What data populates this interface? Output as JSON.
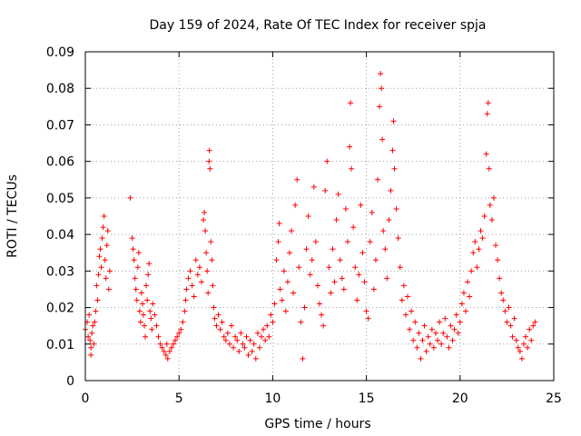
{
  "chart_data": {
    "type": "scatter",
    "title": "Day 159 of 2024, Rate Of TEC Index for receiver spja",
    "xlabel": "GPS time / hours",
    "ylabel": "ROTI / TECUs",
    "xlim": [
      0,
      25
    ],
    "ylim": [
      0,
      0.09
    ],
    "xticks": [
      0,
      5,
      10,
      15,
      20,
      25
    ],
    "xtick_labels": [
      "0",
      "5",
      "10",
      "15",
      "20",
      "25"
    ],
    "yticks": [
      0,
      0.01,
      0.02,
      0.03,
      0.04,
      0.05,
      0.06,
      0.07,
      0.08,
      0.09
    ],
    "ytick_labels": [
      "0",
      "0.01",
      "0.02",
      "0.03",
      "0.04",
      "0.05",
      "0.06",
      "0.07",
      "0.08",
      "0.09"
    ],
    "grid": true,
    "marker": "+",
    "color": "#ff0000",
    "series": [
      {
        "name": "ROTI",
        "points": [
          [
            0.0,
            0.014
          ],
          [
            0.1,
            0.016
          ],
          [
            0.15,
            0.012
          ],
          [
            0.2,
            0.018
          ],
          [
            0.25,
            0.011
          ],
          [
            0.3,
            0.009
          ],
          [
            0.3,
            0.007
          ],
          [
            0.35,
            0.013
          ],
          [
            0.4,
            0.015
          ],
          [
            0.45,
            0.01
          ],
          [
            0.5,
            0.016
          ],
          [
            0.55,
            0.019
          ],
          [
            0.6,
            0.026
          ],
          [
            0.65,
            0.022
          ],
          [
            0.7,
            0.029
          ],
          [
            0.75,
            0.034
          ],
          [
            0.8,
            0.036
          ],
          [
            0.85,
            0.031
          ],
          [
            0.9,
            0.039
          ],
          [
            0.95,
            0.042
          ],
          [
            1.0,
            0.045
          ],
          [
            1.05,
            0.033
          ],
          [
            1.1,
            0.028
          ],
          [
            1.15,
            0.037
          ],
          [
            1.2,
            0.041
          ],
          [
            1.25,
            0.025
          ],
          [
            1.3,
            0.03
          ],
          [
            2.4,
            0.05
          ],
          [
            2.5,
            0.039
          ],
          [
            2.55,
            0.036
          ],
          [
            2.6,
            0.033
          ],
          [
            2.65,
            0.028
          ],
          [
            2.7,
            0.025
          ],
          [
            2.75,
            0.022
          ],
          [
            2.8,
            0.031
          ],
          [
            2.85,
            0.035
          ],
          [
            2.9,
            0.019
          ],
          [
            2.95,
            0.016
          ],
          [
            3.0,
            0.024
          ],
          [
            3.05,
            0.021
          ],
          [
            3.1,
            0.018
          ],
          [
            3.15,
            0.015
          ],
          [
            3.2,
            0.012
          ],
          [
            3.25,
            0.026
          ],
          [
            3.3,
            0.022
          ],
          [
            3.35,
            0.029
          ],
          [
            3.4,
            0.032
          ],
          [
            3.45,
            0.019
          ],
          [
            3.5,
            0.017
          ],
          [
            3.55,
            0.014
          ],
          [
            3.6,
            0.021
          ],
          [
            3.7,
            0.018
          ],
          [
            3.8,
            0.015
          ],
          [
            3.9,
            0.012
          ],
          [
            4.0,
            0.01
          ],
          [
            4.1,
            0.009
          ],
          [
            4.2,
            0.008
          ],
          [
            4.3,
            0.007
          ],
          [
            4.35,
            0.01
          ],
          [
            4.4,
            0.006
          ],
          [
            4.5,
            0.008
          ],
          [
            4.6,
            0.009
          ],
          [
            4.7,
            0.01
          ],
          [
            4.8,
            0.011
          ],
          [
            4.9,
            0.012
          ],
          [
            5.0,
            0.013
          ],
          [
            5.1,
            0.014
          ],
          [
            5.2,
            0.016
          ],
          [
            5.3,
            0.019
          ],
          [
            5.35,
            0.022
          ],
          [
            5.4,
            0.025
          ],
          [
            5.5,
            0.028
          ],
          [
            5.6,
            0.03
          ],
          [
            5.7,
            0.026
          ],
          [
            5.8,
            0.023
          ],
          [
            5.9,
            0.033
          ],
          [
            6.0,
            0.029
          ],
          [
            6.1,
            0.031
          ],
          [
            6.2,
            0.027
          ],
          [
            6.3,
            0.044
          ],
          [
            6.35,
            0.046
          ],
          [
            6.4,
            0.041
          ],
          [
            6.45,
            0.035
          ],
          [
            6.5,
            0.03
          ],
          [
            6.55,
            0.024
          ],
          [
            6.6,
            0.06
          ],
          [
            6.62,
            0.063
          ],
          [
            6.65,
            0.058
          ],
          [
            6.7,
            0.038
          ],
          [
            6.75,
            0.033
          ],
          [
            6.8,
            0.026
          ],
          [
            6.85,
            0.02
          ],
          [
            6.9,
            0.017
          ],
          [
            7.0,
            0.015
          ],
          [
            7.1,
            0.018
          ],
          [
            7.2,
            0.014
          ],
          [
            7.3,
            0.016
          ],
          [
            7.4,
            0.012
          ],
          [
            7.5,
            0.011
          ],
          [
            7.6,
            0.013
          ],
          [
            7.7,
            0.01
          ],
          [
            7.8,
            0.015
          ],
          [
            7.9,
            0.009
          ],
          [
            8.0,
            0.012
          ],
          [
            8.1,
            0.011
          ],
          [
            8.2,
            0.008
          ],
          [
            8.3,
            0.013
          ],
          [
            8.4,
            0.01
          ],
          [
            8.5,
            0.009
          ],
          [
            8.6,
            0.012
          ],
          [
            8.7,
            0.007
          ],
          [
            8.8,
            0.011
          ],
          [
            8.9,
            0.008
          ],
          [
            9.0,
            0.01
          ],
          [
            9.1,
            0.006
          ],
          [
            9.2,
            0.013
          ],
          [
            9.3,
            0.009
          ],
          [
            9.4,
            0.012
          ],
          [
            9.5,
            0.014
          ],
          [
            9.6,
            0.011
          ],
          [
            9.7,
            0.015
          ],
          [
            9.8,
            0.012
          ],
          [
            9.9,
            0.018
          ],
          [
            10.0,
            0.016
          ],
          [
            10.1,
            0.021
          ],
          [
            10.2,
            0.033
          ],
          [
            10.3,
            0.038
          ],
          [
            10.35,
            0.043
          ],
          [
            10.4,
            0.025
          ],
          [
            10.5,
            0.022
          ],
          [
            10.6,
            0.03
          ],
          [
            10.7,
            0.019
          ],
          [
            10.8,
            0.027
          ],
          [
            10.9,
            0.035
          ],
          [
            11.0,
            0.041
          ],
          [
            11.1,
            0.024
          ],
          [
            11.2,
            0.048
          ],
          [
            11.3,
            0.055
          ],
          [
            11.4,
            0.031
          ],
          [
            11.5,
            0.016
          ],
          [
            11.6,
            0.006
          ],
          [
            11.7,
            0.02
          ],
          [
            11.8,
            0.036
          ],
          [
            11.9,
            0.045
          ],
          [
            12.0,
            0.029
          ],
          [
            12.1,
            0.033
          ],
          [
            12.2,
            0.053
          ],
          [
            12.3,
            0.038
          ],
          [
            12.4,
            0.026
          ],
          [
            12.5,
            0.021
          ],
          [
            12.6,
            0.018
          ],
          [
            12.7,
            0.015
          ],
          [
            12.8,
            0.052
          ],
          [
            12.9,
            0.06
          ],
          [
            13.0,
            0.031
          ],
          [
            13.1,
            0.024
          ],
          [
            13.2,
            0.036
          ],
          [
            13.3,
            0.027
          ],
          [
            13.4,
            0.044
          ],
          [
            13.5,
            0.051
          ],
          [
            13.6,
            0.033
          ],
          [
            13.7,
            0.028
          ],
          [
            13.8,
            0.025
          ],
          [
            13.9,
            0.047
          ],
          [
            14.0,
            0.038
          ],
          [
            14.1,
            0.064
          ],
          [
            14.15,
            0.076
          ],
          [
            14.2,
            0.058
          ],
          [
            14.3,
            0.042
          ],
          [
            14.4,
            0.031
          ],
          [
            14.5,
            0.022
          ],
          [
            14.6,
            0.029
          ],
          [
            14.7,
            0.048
          ],
          [
            14.8,
            0.035
          ],
          [
            14.9,
            0.027
          ],
          [
            15.0,
            0.019
          ],
          [
            15.1,
            0.017
          ],
          [
            15.2,
            0.038
          ],
          [
            15.3,
            0.046
          ],
          [
            15.4,
            0.025
          ],
          [
            15.5,
            0.033
          ],
          [
            15.6,
            0.055
          ],
          [
            15.7,
            0.075
          ],
          [
            15.75,
            0.084
          ],
          [
            15.8,
            0.08
          ],
          [
            15.85,
            0.066
          ],
          [
            15.9,
            0.041
          ],
          [
            16.0,
            0.036
          ],
          [
            16.1,
            0.028
          ],
          [
            16.2,
            0.044
          ],
          [
            16.3,
            0.052
          ],
          [
            16.4,
            0.063
          ],
          [
            16.45,
            0.071
          ],
          [
            16.5,
            0.058
          ],
          [
            16.6,
            0.047
          ],
          [
            16.7,
            0.039
          ],
          [
            16.8,
            0.031
          ],
          [
            16.9,
            0.022
          ],
          [
            17.0,
            0.026
          ],
          [
            17.1,
            0.018
          ],
          [
            17.2,
            0.023
          ],
          [
            17.3,
            0.014
          ],
          [
            17.4,
            0.019
          ],
          [
            17.5,
            0.011
          ],
          [
            17.6,
            0.016
          ],
          [
            17.7,
            0.009
          ],
          [
            17.8,
            0.013
          ],
          [
            17.9,
            0.006
          ],
          [
            18.0,
            0.011
          ],
          [
            18.1,
            0.015
          ],
          [
            18.2,
            0.008
          ],
          [
            18.3,
            0.012
          ],
          [
            18.4,
            0.01
          ],
          [
            18.5,
            0.014
          ],
          [
            18.6,
            0.009
          ],
          [
            18.7,
            0.013
          ],
          [
            18.8,
            0.011
          ],
          [
            18.9,
            0.016
          ],
          [
            19.0,
            0.01
          ],
          [
            19.1,
            0.013
          ],
          [
            19.2,
            0.017
          ],
          [
            19.3,
            0.012
          ],
          [
            19.4,
            0.009
          ],
          [
            19.5,
            0.015
          ],
          [
            19.6,
            0.011
          ],
          [
            19.7,
            0.014
          ],
          [
            19.8,
            0.018
          ],
          [
            19.9,
            0.013
          ],
          [
            20.0,
            0.016
          ],
          [
            20.1,
            0.021
          ],
          [
            20.2,
            0.024
          ],
          [
            20.3,
            0.019
          ],
          [
            20.4,
            0.027
          ],
          [
            20.5,
            0.023
          ],
          [
            20.6,
            0.03
          ],
          [
            20.7,
            0.035
          ],
          [
            20.8,
            0.038
          ],
          [
            20.9,
            0.031
          ],
          [
            21.0,
            0.036
          ],
          [
            21.1,
            0.041
          ],
          [
            21.2,
            0.039
          ],
          [
            21.3,
            0.045
          ],
          [
            21.4,
            0.062
          ],
          [
            21.45,
            0.073
          ],
          [
            21.5,
            0.076
          ],
          [
            21.55,
            0.058
          ],
          [
            21.6,
            0.048
          ],
          [
            21.7,
            0.044
          ],
          [
            21.8,
            0.05
          ],
          [
            21.9,
            0.037
          ],
          [
            22.0,
            0.033
          ],
          [
            22.1,
            0.028
          ],
          [
            22.2,
            0.024
          ],
          [
            22.3,
            0.022
          ],
          [
            22.4,
            0.019
          ],
          [
            22.5,
            0.016
          ],
          [
            22.6,
            0.02
          ],
          [
            22.7,
            0.015
          ],
          [
            22.8,
            0.012
          ],
          [
            22.9,
            0.017
          ],
          [
            23.0,
            0.011
          ],
          [
            23.1,
            0.009
          ],
          [
            23.2,
            0.008
          ],
          [
            23.3,
            0.006
          ],
          [
            23.4,
            0.01
          ],
          [
            23.5,
            0.012
          ],
          [
            23.6,
            0.009
          ],
          [
            23.7,
            0.014
          ],
          [
            23.8,
            0.011
          ],
          [
            23.9,
            0.015
          ],
          [
            24.0,
            0.016
          ]
        ]
      }
    ]
  }
}
